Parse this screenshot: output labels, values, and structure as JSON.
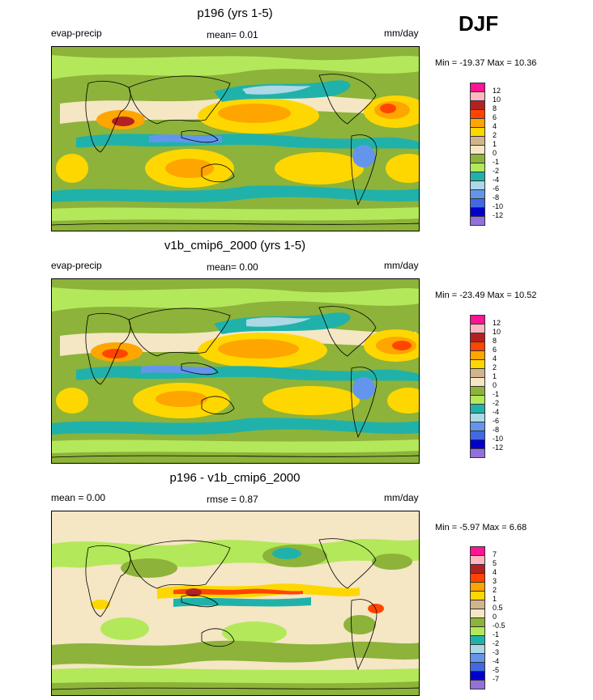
{
  "season": "DJF",
  "panels": [
    {
      "title": "p196 (yrs 1-5)",
      "left_label": "evap-precip",
      "mean_label": "mean=   0.01",
      "units": "mm/day",
      "minmax": "Min = -19.37 Max =  10.36",
      "colorbar_labels": [
        "12",
        "10",
        "8",
        "6",
        "4",
        "2",
        "1",
        "0",
        "-1",
        "-2",
        "-4",
        "-6",
        "-8",
        "-10",
        "-12"
      ]
    },
    {
      "title": "v1b_cmip6_2000 (yrs 1-5)",
      "left_label": "evap-precip",
      "mean_label": "mean=   0.00",
      "units": "mm/day",
      "minmax": "Min = -23.49 Max =  10.52",
      "colorbar_labels": [
        "12",
        "10",
        "8",
        "6",
        "4",
        "2",
        "1",
        "0",
        "-1",
        "-2",
        "-4",
        "-6",
        "-8",
        "-10",
        "-12"
      ]
    },
    {
      "title": "p196 - v1b_cmip6_2000",
      "left_label": "mean =   0.00",
      "mean_label": "rmse =   0.87",
      "units": "mm/day",
      "minmax": "Min =  -5.97 Max =   6.68",
      "colorbar_labels": [
        "7",
        "5",
        "4",
        "3",
        "2",
        "1",
        "0.5",
        "0",
        "-0.5",
        "-1",
        "-2",
        "-3",
        "-4",
        "-5",
        "-7"
      ]
    }
  ],
  "colors": {
    "field_scale": [
      "#ff1493",
      "#ffb6c1",
      "#b22222",
      "#ff4500",
      "#ffa500",
      "#ffd700",
      "#d2b48c",
      "#f5e6c4",
      "#8db33a",
      "#b3e85a",
      "#20b2aa",
      "#add8e6",
      "#6495ed",
      "#4169e1",
      "#0000cd",
      "#9370db"
    ],
    "diff_scale": [
      "#ff1493",
      "#ffb6c1",
      "#b22222",
      "#ff4500",
      "#ffa500",
      "#ffd700",
      "#d2b48c",
      "#f5e6c4",
      "#8db33a",
      "#b3e85a",
      "#20b2aa",
      "#add8e6",
      "#6495ed",
      "#4169e1",
      "#0000cd",
      "#9370db"
    ]
  }
}
